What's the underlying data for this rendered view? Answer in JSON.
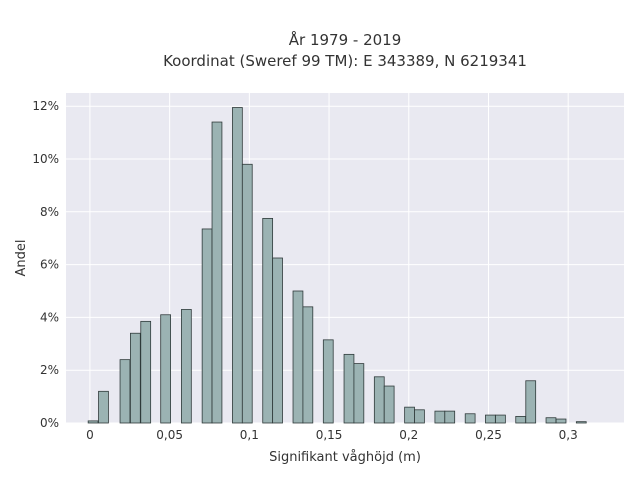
{
  "chart_data": {
    "type": "bar",
    "title": [
      "År 1979 - 2019",
      "Koordinat (Sweref 99 TM): E 343389, N 6219341"
    ],
    "xlabel": "Signifikant våghöjd (m)",
    "ylabel": "Andel",
    "xlim": [
      -0.015,
      0.335
    ],
    "ylim": [
      0,
      12.5
    ],
    "x_ticks": [
      {
        "value": 0,
        "label": "0"
      },
      {
        "value": 0.05,
        "label": "0,05"
      },
      {
        "value": 0.1,
        "label": "0,1"
      },
      {
        "value": 0.15,
        "label": "0,15"
      },
      {
        "value": 0.2,
        "label": "0,2"
      },
      {
        "value": 0.25,
        "label": "0,25"
      },
      {
        "value": 0.3,
        "label": "0,3"
      }
    ],
    "y_ticks": [
      {
        "value": 0,
        "label": "0%"
      },
      {
        "value": 2,
        "label": "2%"
      },
      {
        "value": 4,
        "label": "4%"
      },
      {
        "value": 6,
        "label": "6%"
      },
      {
        "value": 8,
        "label": "8%"
      },
      {
        "value": 10,
        "label": "10%"
      },
      {
        "value": 12,
        "label": "12%"
      }
    ],
    "grid": true,
    "bar_width": 0.0062,
    "x": [
      0.002,
      0.0085,
      0.022,
      0.0285,
      0.035,
      0.0475,
      0.0605,
      0.0735,
      0.0797,
      0.0925,
      0.0987,
      0.1115,
      0.1177,
      0.1305,
      0.1367,
      0.1495,
      0.1625,
      0.1687,
      0.1815,
      0.1877,
      0.2005,
      0.2067,
      0.2195,
      0.2257,
      0.2385,
      0.2512,
      0.2575,
      0.2702,
      0.2765,
      0.2892,
      0.2955,
      0.3082
    ],
    "values": [
      0.08,
      1.2,
      2.4,
      3.4,
      3.85,
      4.1,
      4.3,
      7.35,
      11.4,
      11.95,
      9.8,
      7.75,
      6.25,
      5.0,
      4.4,
      3.15,
      2.6,
      2.25,
      1.75,
      1.4,
      0.6,
      0.5,
      0.45,
      0.45,
      0.35,
      0.3,
      0.3,
      0.25,
      1.6,
      0.2,
      0.15,
      0.05
    ],
    "bar_color": "#9bb3b3",
    "bar_edge_color": "#2f3a3a",
    "plot_background": "#e9e9f1"
  }
}
